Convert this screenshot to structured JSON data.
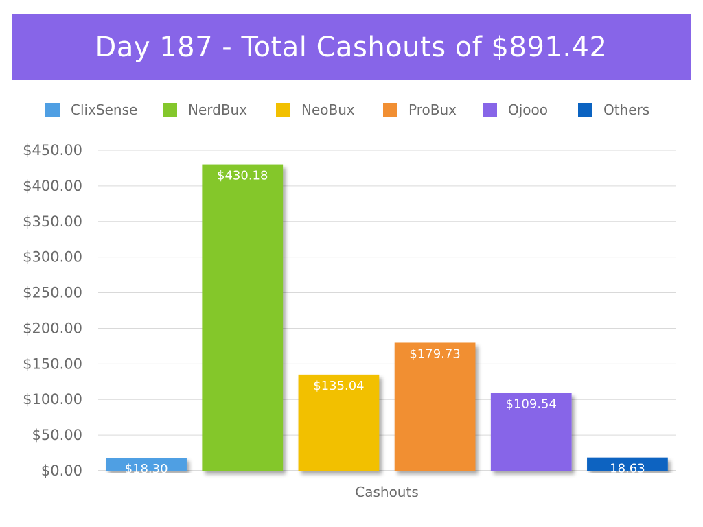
{
  "title": "Day 187 - Total Cashouts of $891.42",
  "chart_data": {
    "type": "bar",
    "title": "Day 187 - Total Cashouts of $891.42",
    "xlabel": "Cashouts",
    "ylabel": "",
    "ylim": [
      0,
      450
    ],
    "yticks": [
      0,
      50,
      100,
      150,
      200,
      250,
      300,
      350,
      400,
      450
    ],
    "ytick_labels": [
      "$0.00",
      "$50.00",
      "$100.00",
      "$150.00",
      "$200.00",
      "$250.00",
      "$300.00",
      "$350.00",
      "$400.00",
      "$450.00"
    ],
    "legend_position": "top",
    "grid": true,
    "series": [
      {
        "name": "ClixSense",
        "value": 18.3,
        "label": "$18.30",
        "color": "#4f9fe3"
      },
      {
        "name": "NerdBux",
        "value": 430.18,
        "label": "$430.18",
        "color": "#84c72c"
      },
      {
        "name": "NeoBux",
        "value": 135.04,
        "label": "$135.04",
        "color": "#f2c000"
      },
      {
        "name": "ProBux",
        "value": 179.73,
        "label": "$179.73",
        "color": "#f18f33"
      },
      {
        "name": "Ojooo",
        "value": 109.54,
        "label": "$109.54",
        "color": "#8765e8"
      },
      {
        "name": "Others",
        "value": 18.63,
        "label": "18.63",
        "color": "#0b63c1"
      }
    ]
  }
}
